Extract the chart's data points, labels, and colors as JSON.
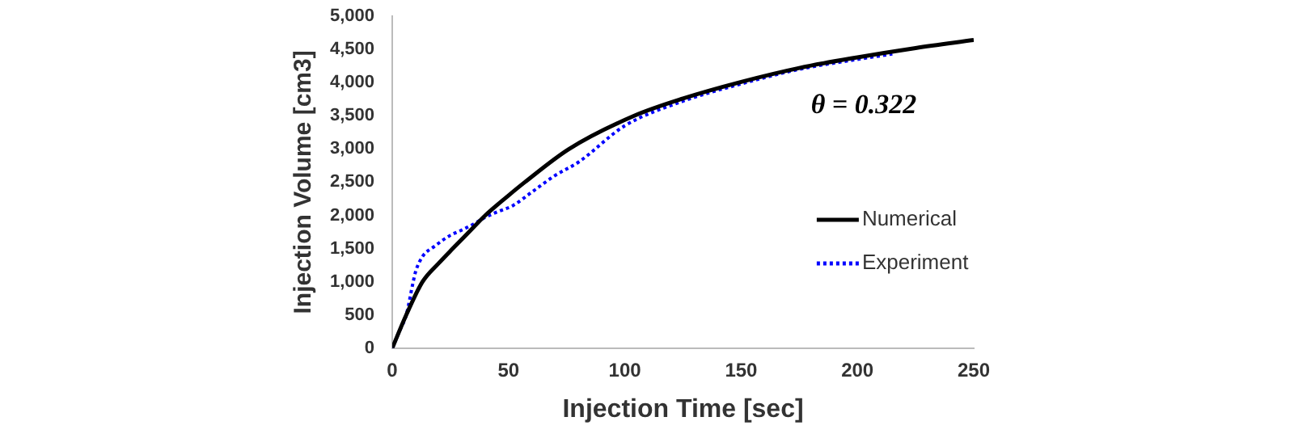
{
  "chart_data": {
    "type": "line",
    "xlabel": "Injection Time [sec]",
    "ylabel": "Injection Volume [cm3]",
    "xlim": [
      0,
      250
    ],
    "xticks": [
      0,
      50,
      100,
      150,
      200,
      250
    ],
    "ylim": [
      0,
      5000
    ],
    "yticks": [
      {
        "value": 0,
        "label": "0"
      },
      {
        "value": 500,
        "label": "500"
      },
      {
        "value": 1000,
        "label": "1,000"
      },
      {
        "value": 1500,
        "label": "1,500"
      },
      {
        "value": 2000,
        "label": "2,000"
      },
      {
        "value": 2500,
        "label": "2,500"
      },
      {
        "value": 3000,
        "label": "3,000"
      },
      {
        "value": 3500,
        "label": "3,500"
      },
      {
        "value": 4000,
        "label": "4,000"
      },
      {
        "value": 4500,
        "label": "4,500"
      },
      {
        "value": 5000,
        "label": "5,000"
      }
    ],
    "grid": false,
    "legend": "right",
    "marker": "none",
    "annotations": [
      "θ = 0.322"
    ],
    "series": [
      {
        "name": "Numerical",
        "color": "#000000",
        "line_style": "solid",
        "x": [
          0,
          6,
          13,
          20,
          26,
          33,
          40,
          50,
          57,
          76,
          104,
          125,
          150,
          175,
          200,
          225,
          250
        ],
        "values": [
          0,
          500,
          1000,
          1280,
          1500,
          1750,
          2000,
          2300,
          2500,
          3000,
          3500,
          3760,
          4010,
          4220,
          4380,
          4520,
          4640
        ]
      },
      {
        "name": "Experiment",
        "color": "#0000ff",
        "line_style": "dotted",
        "x": [
          0,
          3,
          6,
          9,
          10,
          13,
          18,
          25,
          30,
          35,
          40,
          45,
          52,
          60,
          70,
          80,
          100,
          125,
          150,
          175,
          200,
          215
        ],
        "values": [
          0,
          250,
          500,
          1000,
          1150,
          1380,
          1530,
          1700,
          1780,
          1870,
          1970,
          2050,
          2150,
          2350,
          2600,
          2800,
          3350,
          3720,
          3980,
          4200,
          4350,
          4430
        ]
      }
    ]
  }
}
